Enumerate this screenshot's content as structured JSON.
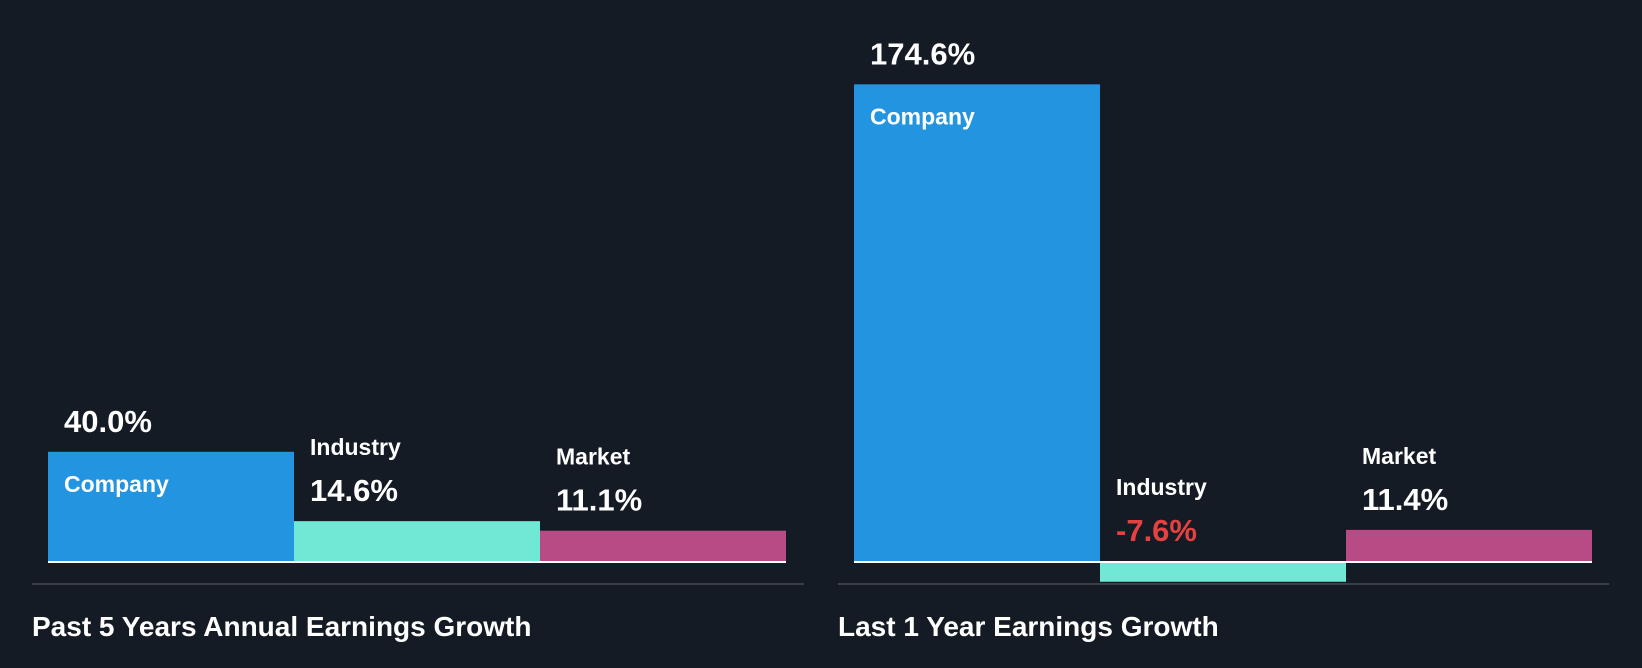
{
  "colors": {
    "background": "#151b24",
    "company": "#2394df",
    "industry": "#71e8d6",
    "market": "#b84a85",
    "negative_text": "#e64141",
    "text": "#ffffff",
    "separator": "#3a3f47"
  },
  "chart_data": [
    {
      "type": "bar",
      "title": "Past 5 Years Annual Earnings Growth",
      "categories": [
        "Company",
        "Industry",
        "Market"
      ],
      "values": [
        40.0,
        14.6,
        11.1
      ],
      "value_labels": [
        "40.0%",
        "14.6%",
        "11.1%"
      ],
      "unit": "%"
    },
    {
      "type": "bar",
      "title": "Last 1 Year Earnings Growth",
      "categories": [
        "Company",
        "Industry",
        "Market"
      ],
      "values": [
        174.6,
        -7.6,
        11.4
      ],
      "value_labels": [
        "174.6%",
        "-7.6%",
        "11.4%"
      ],
      "unit": "%"
    }
  ]
}
